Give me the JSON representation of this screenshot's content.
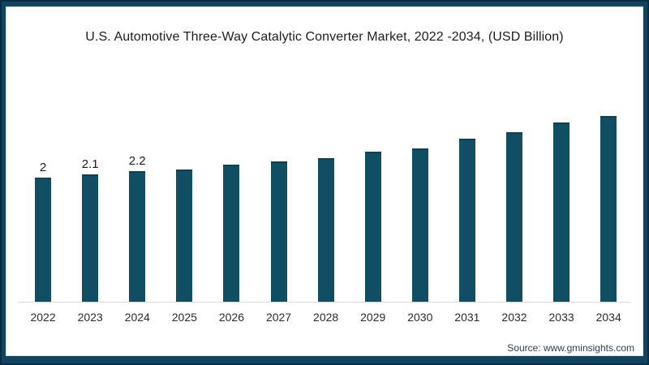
{
  "chart_data": {
    "type": "bar",
    "title": "U.S. Automotive Three-Way Catalytic Converter Market, 2022 -2034, (USD Billion)",
    "categories": [
      "2022",
      "2023",
      "2024",
      "2025",
      "2026",
      "2027",
      "2028",
      "2029",
      "2030",
      "2031",
      "2032",
      "2033",
      "2034"
    ],
    "values": [
      2,
      2.1,
      2.2,
      2.25,
      2.4,
      2.5,
      2.6,
      2.8,
      2.9,
      3.2,
      3.4,
      3.7,
      3.9
    ],
    "data_labels": [
      "2",
      "2.1",
      "2.2",
      "",
      "",
      "",
      "",
      "",
      "",
      "",
      "",
      "",
      ""
    ],
    "xlabel": "",
    "ylabel": "",
    "y_axis_visible": false,
    "grid": false,
    "legend": false,
    "bar_color": "#0f4e63",
    "axis_line_color": "#d9d9d9"
  },
  "footer": {
    "source": "Source: www.gminsights.com"
  },
  "colors": {
    "frame": "#11455f",
    "frame_outer_edge": "#0a2c42",
    "canvas_background": "#ffffff",
    "title_text": "#1d1d1d",
    "tick_text": "#2b2b2b",
    "source_text": "#2e3f4e"
  }
}
